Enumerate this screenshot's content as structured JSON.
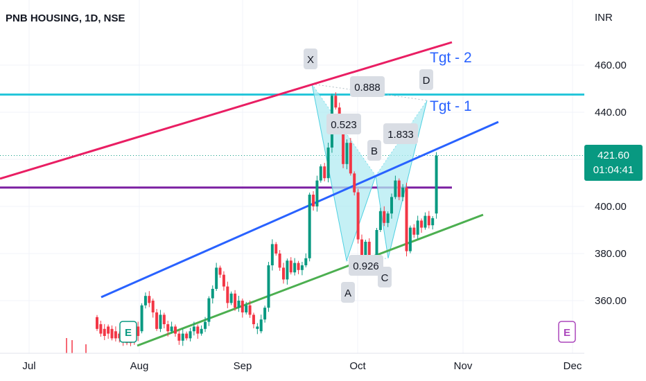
{
  "header": {
    "title": "PNB HOUSING, 1D, NSE"
  },
  "price_axis": {
    "currency": "INR"
  },
  "last_price": {
    "price": "421.60",
    "countdown": "01:04:41"
  },
  "colors": {
    "up": "#089981",
    "down": "#f23645",
    "red_trend": "#e91e63",
    "blue_trend": "#2962ff",
    "green_trend": "#4caf50",
    "cyan_level": "#26c6da",
    "purple_level": "#7b1fa2",
    "harmonic_fill": "#b2ebf2",
    "target_text": "#2962ff",
    "event_green": "#089981",
    "event_purple": "#ab47bc"
  },
  "chart_data": {
    "type": "candlestick",
    "title": "PNB HOUSING, 1D, NSE",
    "x_ticks": [
      "Jul",
      "Aug",
      "Sep",
      "Oct",
      "Nov",
      "Dec"
    ],
    "y_ticks": [
      "360.00",
      "380.00",
      "400.00",
      "420.00",
      "440.00",
      "460.00"
    ],
    "ylim": [
      340,
      475
    ],
    "candles": [
      {
        "o": 353,
        "c": 348
      },
      {
        "o": 350,
        "c": 346
      },
      {
        "o": 348,
        "c": 345
      },
      {
        "o": 349,
        "c": 346
      },
      {
        "o": 348,
        "c": 344
      },
      {
        "o": 347,
        "c": 344
      },
      {
        "o": 346,
        "c": 344
      },
      {
        "o": 345,
        "c": 343
      },
      {
        "o": 344,
        "c": 342
      },
      {
        "o": 343,
        "c": 342
      },
      {
        "o": 346,
        "c": 343
      },
      {
        "o": 349,
        "c": 345
      },
      {
        "o": 347,
        "c": 358
      },
      {
        "o": 358,
        "c": 362
      },
      {
        "o": 362,
        "c": 359
      },
      {
        "o": 360,
        "c": 355
      },
      {
        "o": 355,
        "c": 348
      },
      {
        "o": 348,
        "c": 354
      },
      {
        "o": 354,
        "c": 350
      },
      {
        "o": 350,
        "c": 347
      },
      {
        "o": 347,
        "c": 349
      },
      {
        "o": 349,
        "c": 346
      },
      {
        "o": 346,
        "c": 343
      },
      {
        "o": 343,
        "c": 346
      },
      {
        "o": 346,
        "c": 344
      },
      {
        "o": 344,
        "c": 347
      },
      {
        "o": 347,
        "c": 349
      },
      {
        "o": 349,
        "c": 346
      },
      {
        "o": 346,
        "c": 348
      },
      {
        "o": 348,
        "c": 351
      },
      {
        "o": 351,
        "c": 361
      },
      {
        "o": 361,
        "c": 365
      },
      {
        "o": 365,
        "c": 374
      },
      {
        "o": 374,
        "c": 371
      },
      {
        "o": 371,
        "c": 366
      },
      {
        "o": 366,
        "c": 359
      },
      {
        "o": 359,
        "c": 363
      },
      {
        "o": 363,
        "c": 357
      },
      {
        "o": 357,
        "c": 360
      },
      {
        "o": 360,
        "c": 355
      },
      {
        "o": 355,
        "c": 358
      },
      {
        "o": 358,
        "c": 354
      },
      {
        "o": 354,
        "c": 350
      },
      {
        "o": 348,
        "c": 349
      },
      {
        "o": 347,
        "c": 352
      },
      {
        "o": 352,
        "c": 357
      },
      {
        "o": 357,
        "c": 375
      },
      {
        "o": 375,
        "c": 384
      },
      {
        "o": 384,
        "c": 380
      },
      {
        "o": 380,
        "c": 374
      },
      {
        "o": 374,
        "c": 369
      },
      {
        "o": 369,
        "c": 377
      },
      {
        "o": 377,
        "c": 372
      },
      {
        "o": 372,
        "c": 376
      },
      {
        "o": 376,
        "c": 373
      },
      {
        "o": 373,
        "c": 375
      },
      {
        "o": 375,
        "c": 378
      },
      {
        "o": 378,
        "c": 405
      },
      {
        "o": 405,
        "c": 400
      },
      {
        "o": 400,
        "c": 411
      },
      {
        "o": 411,
        "c": 417
      },
      {
        "o": 417,
        "c": 412
      },
      {
        "o": 412,
        "c": 425
      },
      {
        "o": 425,
        "c": 447
      },
      {
        "o": 447,
        "c": 442
      },
      {
        "o": 442,
        "c": 432
      },
      {
        "o": 432,
        "c": 418
      },
      {
        "o": 418,
        "c": 427
      },
      {
        "o": 427,
        "c": 414
      },
      {
        "o": 414,
        "c": 406
      },
      {
        "o": 406,
        "c": 386
      },
      {
        "o": 386,
        "c": 379
      },
      {
        "o": 379,
        "c": 385
      },
      {
        "o": 385,
        "c": 377
      },
      {
        "o": 377,
        "c": 375
      },
      {
        "o": 375,
        "c": 390
      },
      {
        "o": 390,
        "c": 398
      },
      {
        "o": 398,
        "c": 393
      },
      {
        "o": 393,
        "c": 397
      },
      {
        "o": 397,
        "c": 404
      },
      {
        "o": 404,
        "c": 411
      },
      {
        "o": 411,
        "c": 404
      },
      {
        "o": 404,
        "c": 408
      },
      {
        "o": 408,
        "c": 381
      },
      {
        "o": 381,
        "c": 391
      },
      {
        "o": 391,
        "c": 388
      },
      {
        "o": 388,
        "c": 394
      },
      {
        "o": 394,
        "c": 391
      },
      {
        "o": 391,
        "c": 396
      },
      {
        "o": 396,
        "c": 392
      },
      {
        "o": 392,
        "c": 395
      },
      {
        "o": 397,
        "c": 421.6
      }
    ],
    "levels": [
      {
        "name": "cyan-level-line",
        "price": 447.5,
        "color_key": "cyan_level"
      },
      {
        "name": "purple-level-line",
        "price": 408,
        "color_key": "purple_level"
      }
    ],
    "pattern_labels": [
      {
        "name": "pattern-label-x",
        "text": "X",
        "price": 457,
        "x_label": "Sep"
      },
      {
        "name": "pattern-label-a",
        "text": "A",
        "price": 359,
        "x_label": "Oct"
      },
      {
        "name": "pattern-label-b",
        "text": "B",
        "price": 417,
        "x_label": "Oct"
      },
      {
        "name": "pattern-label-c",
        "text": "C",
        "price": 369,
        "x_label": "Oct"
      },
      {
        "name": "pattern-label-d",
        "text": "D",
        "price": 450,
        "x_label": "Oct"
      }
    ],
    "ratio_labels": [
      "0.888",
      "0.523",
      "1.833",
      "0.926"
    ],
    "targets": [
      "Tgt - 2",
      "Tgt - 1"
    ],
    "event_markers": [
      {
        "name": "earnings-event-marker-green",
        "text": "E"
      },
      {
        "name": "earnings-event-marker-purple",
        "text": "E"
      }
    ]
  }
}
